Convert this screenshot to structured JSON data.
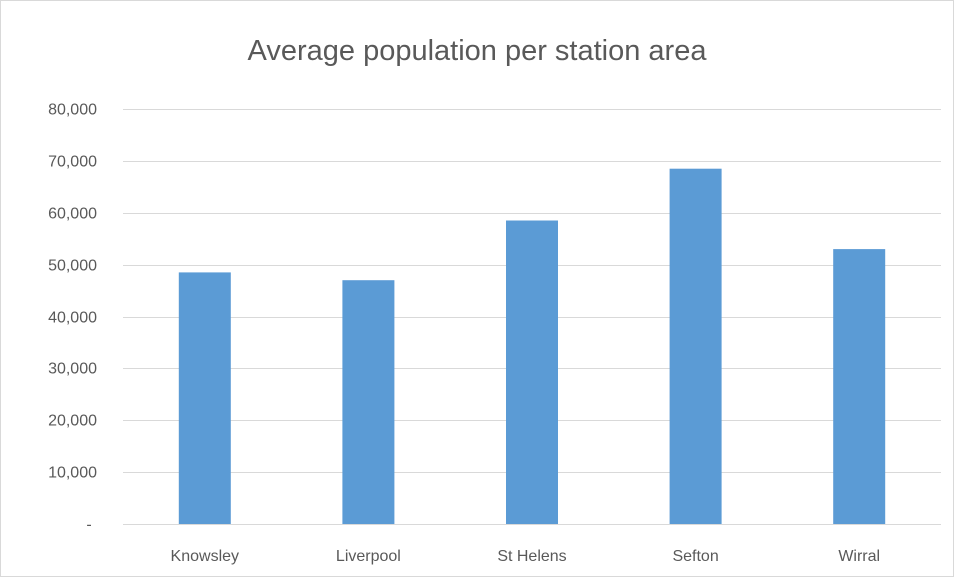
{
  "chart_data": {
    "type": "bar",
    "title": "Average population per station area",
    "xlabel": "",
    "ylabel": "",
    "categories": [
      "Knowsley",
      "Liverpool",
      "St Helens",
      "Sefton",
      "Wirral"
    ],
    "values": [
      48500,
      47000,
      58500,
      68500,
      53000
    ],
    "ylim": [
      0,
      80000
    ],
    "yticks": [
      "-",
      "10,000",
      "20,000",
      "30,000",
      "40,000",
      "50,000",
      "60,000",
      "70,000",
      "80,000"
    ],
    "grid": true,
    "legend": "none",
    "bar_color": "#5b9bd5",
    "grid_color": "#d9d9d9",
    "text_color": "#595959"
  }
}
